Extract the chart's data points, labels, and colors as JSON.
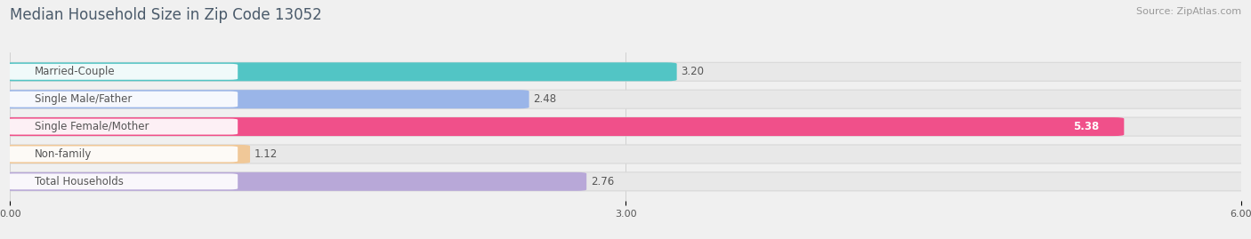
{
  "title": "Median Household Size in Zip Code 13052",
  "source": "Source: ZipAtlas.com",
  "categories": [
    "Married-Couple",
    "Single Male/Father",
    "Single Female/Mother",
    "Non-family",
    "Total Households"
  ],
  "values": [
    3.2,
    2.48,
    5.38,
    1.12,
    2.76
  ],
  "bar_colors": [
    "#52c5c5",
    "#9ab5e8",
    "#f0508a",
    "#f0c898",
    "#b8a8d8"
  ],
  "value_colors": [
    "#555555",
    "#555555",
    "#ffffff",
    "#555555",
    "#555555"
  ],
  "background_color": "#f0f0f0",
  "track_color": "#e8e8e8",
  "track_edge_color": "#d8d8d8",
  "label_color": "#555555",
  "title_color": "#4a5a6a",
  "source_color": "#999999",
  "xlim": [
    0,
    6.0
  ],
  "xticks": [
    0.0,
    3.0,
    6.0
  ],
  "xtick_labels": [
    "0.00",
    "3.00",
    "6.00"
  ],
  "bar_height": 0.58,
  "value_fontsize": 8.5,
  "label_fontsize": 8.5,
  "title_fontsize": 12,
  "source_fontsize": 8
}
